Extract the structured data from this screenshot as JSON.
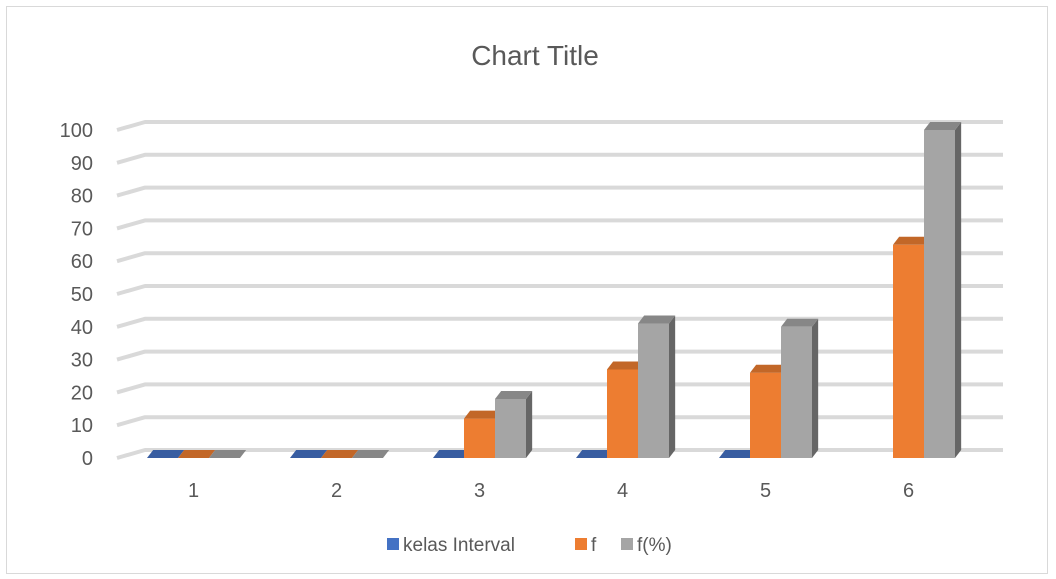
{
  "chart_data": {
    "type": "bar",
    "title": "Chart Title",
    "xlabel": "",
    "ylabel": "",
    "categories": [
      "1",
      "2",
      "3",
      "4",
      "5",
      "6"
    ],
    "ylim": [
      0,
      100
    ],
    "yticks": [
      0,
      10,
      20,
      30,
      40,
      50,
      60,
      70,
      80,
      90,
      100
    ],
    "grid": true,
    "legend_position": "bottom",
    "series": [
      {
        "name": "kelas Interval",
        "color": "#4472c4",
        "values": [
          0,
          0,
          0,
          0,
          0,
          null
        ]
      },
      {
        "name": "f",
        "color": "#ed7d31",
        "values": [
          0,
          0,
          12,
          27,
          26,
          65
        ]
      },
      {
        "name": "f(%)",
        "color": "#a5a5a5",
        "values": [
          0,
          0,
          18,
          41,
          40,
          100
        ]
      }
    ]
  }
}
